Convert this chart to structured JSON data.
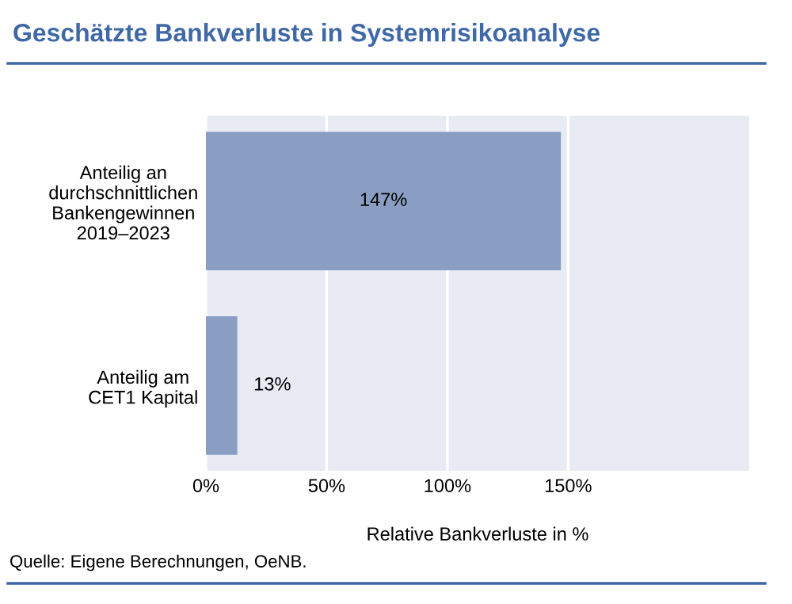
{
  "chart_data": {
    "type": "bar",
    "orientation": "horizontal",
    "title": "Geschätzte Bankverluste in Systemrisikoanalyse",
    "categories": [
      "Anteilig an\ndurchschnittlichen\nBankengewinnen\n2019–2023",
      "Anteilig am\nCET1 Kapital"
    ],
    "values": [
      147,
      13
    ],
    "value_labels": [
      "147%",
      "13%"
    ],
    "color": "#8a9ec4",
    "xlabel": "Relative Bankverluste in %",
    "xlim": [
      0,
      225
    ],
    "xticks": [
      {
        "value": 0,
        "label": "0%"
      },
      {
        "value": 50,
        "label": "50%"
      },
      {
        "value": 100,
        "label": "100%"
      },
      {
        "value": 150,
        "label": "150%"
      }
    ],
    "grid": "x",
    "legend": false,
    "annotations": [
      "Quelle: Eigene Berechnungen, OeNB."
    ]
  }
}
